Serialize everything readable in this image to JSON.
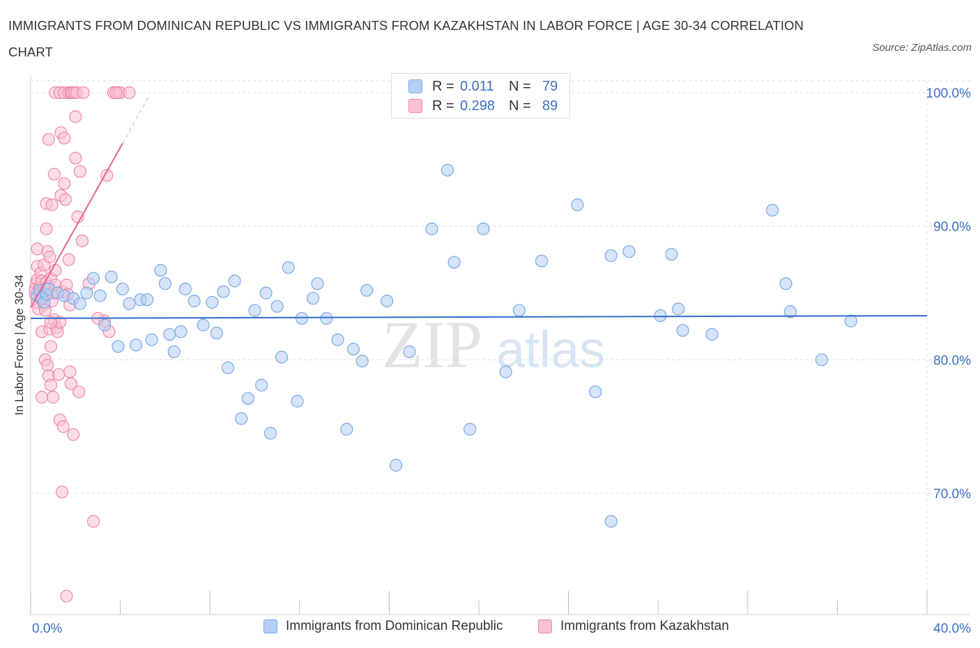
{
  "title": "IMMIGRANTS FROM DOMINICAN REPUBLIC VS IMMIGRANTS FROM KAZAKHSTAN IN LABOR FORCE | AGE 30-34 CORRELATION CHART",
  "source": "Source: ZipAtlas.com",
  "watermark": {
    "zip": "ZIP",
    "atlas": "atlas"
  },
  "legend": {
    "r_label": "R =",
    "n_label": "N =",
    "rows": [
      {
        "r": "0.011",
        "n": "79"
      },
      {
        "r": "0.298",
        "n": "89"
      }
    ]
  },
  "colors": {
    "blue_fill": "#b5cef3",
    "blue_stroke": "#7aa7e3",
    "blue_line": "#2f6cc8",
    "pink_fill": "#f9c1d4",
    "pink_stroke": "#ee86a9",
    "pink_line": "#e8628f",
    "axis_text": "#3b6fc4",
    "grid": "#dddddd"
  },
  "chart_data": {
    "type": "scatter",
    "title": "IMMIGRANTS FROM DOMINICAN REPUBLIC VS IMMIGRANTS FROM KAZAKHSTAN IN LABOR FORCE | AGE 30-34 CORRELATION CHART",
    "xlabel": "",
    "ylabel": "In Labor Force | Age 30-34",
    "x_tick_labels": [
      "0.0%",
      "40.0%"
    ],
    "y_tick_labels": [
      "100.0%",
      "90.0%",
      "80.0%",
      "70.0%"
    ],
    "y_ticks": [
      100,
      90,
      80,
      70
    ],
    "xlim": [
      0,
      40
    ],
    "ylim": [
      61.5,
      103
    ],
    "grid": true,
    "legend_position": "top-center",
    "series": [
      {
        "name": "Immigrants from Dominican Republic",
        "R": 0.011,
        "N": 79,
        "trend": {
          "x": [
            0,
            40
          ],
          "y": [
            83.1,
            83.3
          ]
        },
        "points": [
          [
            0.3,
            84.8
          ],
          [
            0.4,
            85.2
          ],
          [
            0.5,
            84.6
          ],
          [
            0.6,
            84.3
          ],
          [
            0.7,
            84.9
          ],
          [
            0.8,
            85.3
          ],
          [
            1.2,
            85.0
          ],
          [
            1.5,
            84.8
          ],
          [
            1.9,
            84.6
          ],
          [
            2.2,
            84.2
          ],
          [
            2.5,
            85.0
          ],
          [
            2.8,
            86.1
          ],
          [
            3.1,
            84.8
          ],
          [
            3.3,
            82.6
          ],
          [
            3.6,
            86.2
          ],
          [
            3.9,
            81.0
          ],
          [
            4.1,
            85.3
          ],
          [
            4.4,
            84.2
          ],
          [
            4.7,
            81.1
          ],
          [
            4.9,
            84.5
          ],
          [
            5.2,
            84.5
          ],
          [
            5.4,
            81.5
          ],
          [
            5.8,
            86.7
          ],
          [
            6.0,
            85.7
          ],
          [
            6.2,
            81.9
          ],
          [
            6.4,
            80.6
          ],
          [
            6.7,
            82.1
          ],
          [
            6.9,
            85.3
          ],
          [
            7.3,
            84.4
          ],
          [
            7.7,
            82.6
          ],
          [
            8.1,
            84.3
          ],
          [
            8.3,
            82.0
          ],
          [
            8.6,
            85.1
          ],
          [
            8.8,
            79.4
          ],
          [
            9.1,
            85.9
          ],
          [
            9.4,
            75.6
          ],
          [
            9.7,
            77.1
          ],
          [
            10.0,
            83.7
          ],
          [
            10.3,
            78.1
          ],
          [
            10.5,
            85.0
          ],
          [
            10.7,
            74.5
          ],
          [
            11.0,
            84.0
          ],
          [
            11.2,
            80.2
          ],
          [
            11.5,
            86.9
          ],
          [
            11.9,
            76.9
          ],
          [
            12.1,
            83.1
          ],
          [
            12.6,
            84.6
          ],
          [
            12.8,
            85.7
          ],
          [
            13.2,
            83.1
          ],
          [
            13.7,
            81.5
          ],
          [
            14.1,
            74.8
          ],
          [
            14.4,
            80.8
          ],
          [
            14.8,
            79.9
          ],
          [
            15.0,
            85.2
          ],
          [
            15.9,
            84.4
          ],
          [
            16.3,
            72.1
          ],
          [
            16.9,
            80.6
          ],
          [
            17.9,
            89.8
          ],
          [
            18.6,
            94.2
          ],
          [
            18.9,
            87.3
          ],
          [
            19.6,
            74.8
          ],
          [
            20.2,
            89.8
          ],
          [
            21.2,
            79.1
          ],
          [
            21.8,
            83.7
          ],
          [
            22.8,
            87.4
          ],
          [
            24.4,
            91.6
          ],
          [
            25.2,
            77.6
          ],
          [
            25.9,
            67.9
          ],
          [
            25.9,
            87.8
          ],
          [
            26.7,
            88.1
          ],
          [
            28.1,
            83.3
          ],
          [
            28.6,
            87.9
          ],
          [
            28.9,
            83.8
          ],
          [
            29.1,
            82.2
          ],
          [
            30.4,
            81.9
          ],
          [
            33.1,
            91.2
          ],
          [
            33.7,
            85.7
          ],
          [
            33.9,
            83.6
          ],
          [
            35.3,
            80.0
          ],
          [
            36.6,
            82.9
          ]
        ]
      },
      {
        "name": "Immigrants from Kazakhstan",
        "R": 0.298,
        "N": 89,
        "trend": {
          "x": [
            0,
            4.1
          ],
          "y": [
            83.9,
            96.2
          ]
        },
        "trend_dashed": {
          "x": [
            4.1,
            5.3
          ],
          "y": [
            96.2,
            99.8
          ]
        },
        "points": [
          [
            0.2,
            84.9
          ],
          [
            0.2,
            85.3
          ],
          [
            0.25,
            85.7
          ],
          [
            0.3,
            86.0
          ],
          [
            0.3,
            84.3
          ],
          [
            0.3,
            88.3
          ],
          [
            0.3,
            87.0
          ],
          [
            0.35,
            83.8
          ],
          [
            0.4,
            85.4
          ],
          [
            0.4,
            85.0
          ],
          [
            0.45,
            84.6
          ],
          [
            0.45,
            86.5
          ],
          [
            0.5,
            85.9
          ],
          [
            0.5,
            82.1
          ],
          [
            0.5,
            77.2
          ],
          [
            0.55,
            85.1
          ],
          [
            0.6,
            87.1
          ],
          [
            0.6,
            84.1
          ],
          [
            0.65,
            80.0
          ],
          [
            0.65,
            83.7
          ],
          [
            0.7,
            85.8
          ],
          [
            0.7,
            89.8
          ],
          [
            0.7,
            91.7
          ],
          [
            0.75,
            88.1
          ],
          [
            0.75,
            79.6
          ],
          [
            0.8,
            78.8
          ],
          [
            0.8,
            85.5
          ],
          [
            0.8,
            96.5
          ],
          [
            0.85,
            87.7
          ],
          [
            0.85,
            82.3
          ],
          [
            0.9,
            86.1
          ],
          [
            0.9,
            81.0
          ],
          [
            0.9,
            78.1
          ],
          [
            0.95,
            91.6
          ],
          [
            0.95,
            84.4
          ],
          [
            1.0,
            85.0
          ],
          [
            1.0,
            77.2
          ],
          [
            1.05,
            93.9
          ],
          [
            1.05,
            83.0
          ],
          [
            1.1,
            86.7
          ],
          [
            1.1,
            85.6
          ],
          [
            1.1,
            100.0
          ],
          [
            1.15,
            82.4
          ],
          [
            1.2,
            82.1
          ],
          [
            1.25,
            78.9
          ],
          [
            1.3,
            100.0
          ],
          [
            1.3,
            75.5
          ],
          [
            1.35,
            92.3
          ],
          [
            1.35,
            97.0
          ],
          [
            1.4,
            85.1
          ],
          [
            1.4,
            70.1
          ],
          [
            1.45,
            75.0
          ],
          [
            1.5,
            96.6
          ],
          [
            1.5,
            93.2
          ],
          [
            1.5,
            100.0
          ],
          [
            1.55,
            92.0
          ],
          [
            1.6,
            62.3
          ],
          [
            1.6,
            85.6
          ],
          [
            1.65,
            84.9
          ],
          [
            1.7,
            87.5
          ],
          [
            1.7,
            100.0
          ],
          [
            1.75,
            84.1
          ],
          [
            1.75,
            79.1
          ],
          [
            1.8,
            100.0
          ],
          [
            1.8,
            78.2
          ],
          [
            1.85,
            100.0
          ],
          [
            1.9,
            74.4
          ],
          [
            1.95,
            100.0
          ],
          [
            2.0,
            95.1
          ],
          [
            2.0,
            98.2
          ],
          [
            2.05,
            100.0
          ],
          [
            2.1,
            90.7
          ],
          [
            2.15,
            77.6
          ],
          [
            2.2,
            94.1
          ],
          [
            2.3,
            88.9
          ],
          [
            2.35,
            100.0
          ],
          [
            2.6,
            85.7
          ],
          [
            2.8,
            67.9
          ],
          [
            3.3,
            82.9
          ],
          [
            3.0,
            83.1
          ],
          [
            3.4,
            93.8
          ],
          [
            3.5,
            82.1
          ],
          [
            3.7,
            100.0
          ],
          [
            3.9,
            100.0
          ],
          [
            4.0,
            100.0
          ],
          [
            4.4,
            100.0
          ],
          [
            3.8,
            100.0
          ],
          [
            1.3,
            82.8
          ],
          [
            0.9,
            82.8
          ]
        ]
      }
    ]
  },
  "bottom_legend": [
    "Immigrants from Dominican Republic",
    "Immigrants from Kazakhstan"
  ]
}
